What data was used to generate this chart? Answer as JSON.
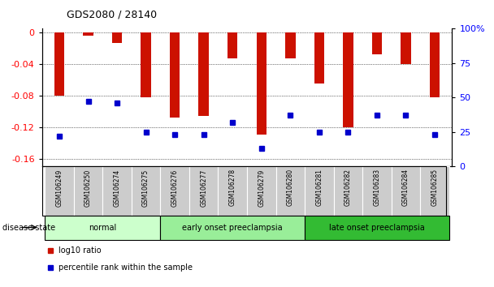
{
  "title": "GDS2080 / 28140",
  "samples": [
    "GSM106249",
    "GSM106250",
    "GSM106274",
    "GSM106275",
    "GSM106276",
    "GSM106277",
    "GSM106278",
    "GSM106279",
    "GSM106280",
    "GSM106281",
    "GSM106282",
    "GSM106283",
    "GSM106284",
    "GSM106285"
  ],
  "log10_ratio": [
    -0.08,
    -0.004,
    -0.013,
    -0.082,
    -0.108,
    -0.106,
    -0.033,
    -0.13,
    -0.033,
    -0.065,
    -0.12,
    -0.028,
    -0.04,
    -0.082
  ],
  "percentile_rank": [
    22,
    47,
    46,
    25,
    23,
    23,
    32,
    13,
    37,
    25,
    25,
    37,
    37,
    23
  ],
  "groups": [
    {
      "label": "normal",
      "start": 0,
      "end": 4,
      "color": "#ccffcc"
    },
    {
      "label": "early onset preeclampsia",
      "start": 4,
      "end": 9,
      "color": "#99ee99"
    },
    {
      "label": "late onset preeclampsia",
      "start": 9,
      "end": 14,
      "color": "#33bb33"
    }
  ],
  "ylim_left": [
    -0.17,
    0.005
  ],
  "ylim_right": [
    0,
    100
  ],
  "yticks_left": [
    0,
    -0.04,
    -0.08,
    -0.12,
    -0.16
  ],
  "yticks_right": [
    0,
    25,
    50,
    75,
    100
  ],
  "bar_color": "#cc1100",
  "dot_color": "#0000cc",
  "bg_color": "#ffffff",
  "label_bg": "#cccccc",
  "grid_color": "#000000",
  "legend_log10": "log10 ratio",
  "legend_pct": "percentile rank within the sample",
  "disease_state_label": "disease state"
}
